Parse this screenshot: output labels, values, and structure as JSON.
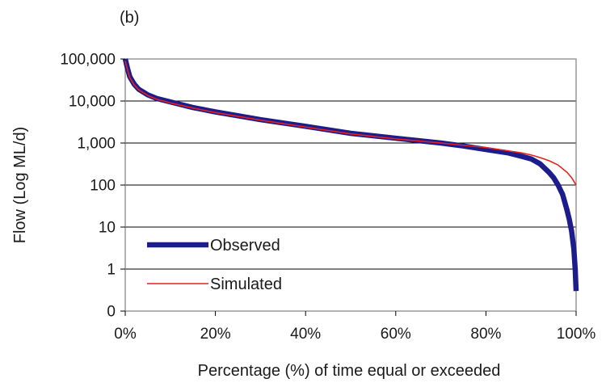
{
  "chart_data": {
    "type": "line",
    "panel_label": "(b)",
    "xlabel": "Percentage (%) of time equal or exceeded",
    "ylabel": "Flow (Log ML/d)",
    "x_ticks": [
      "0%",
      "20%",
      "40%",
      "60%",
      "80%",
      "100%"
    ],
    "y_ticks": [
      "0",
      "1",
      "10",
      "100",
      "1,000",
      "10,000",
      "100,000"
    ],
    "y_scale": "log",
    "xlim": [
      0,
      100
    ],
    "ylim_decades": [
      -1,
      5
    ],
    "grid": "horizontal",
    "legend_position": "bottom-left",
    "series": [
      {
        "name": "Observed",
        "color": "#1c1c8c",
        "x": [
          0,
          0.5,
          1,
          2,
          3,
          5,
          7,
          10,
          15,
          20,
          30,
          40,
          50,
          60,
          70,
          75,
          80,
          85,
          88,
          90,
          92,
          94,
          95,
          96,
          97,
          98,
          98.5,
          99,
          99.5,
          99.8,
          100
        ],
        "y": [
          100000,
          60000,
          38000,
          25000,
          19000,
          14000,
          11500,
          9500,
          7000,
          5500,
          3600,
          2500,
          1700,
          1300,
          1000,
          850,
          700,
          580,
          480,
          420,
          320,
          200,
          150,
          100,
          60,
          25,
          15,
          8,
          3,
          1,
          0.3
        ]
      },
      {
        "name": "Simulated",
        "color": "#e8211c",
        "x": [
          0,
          0.5,
          1,
          2,
          3,
          5,
          7,
          10,
          15,
          20,
          30,
          40,
          50,
          60,
          70,
          80,
          85,
          88,
          90,
          92,
          94,
          96,
          98,
          99,
          100
        ],
        "y": [
          90000,
          55000,
          36000,
          24000,
          18500,
          13500,
          11000,
          9000,
          6800,
          5300,
          3500,
          2400,
          1650,
          1250,
          1000,
          780,
          650,
          580,
          520,
          450,
          380,
          300,
          200,
          150,
          100
        ]
      }
    ]
  }
}
